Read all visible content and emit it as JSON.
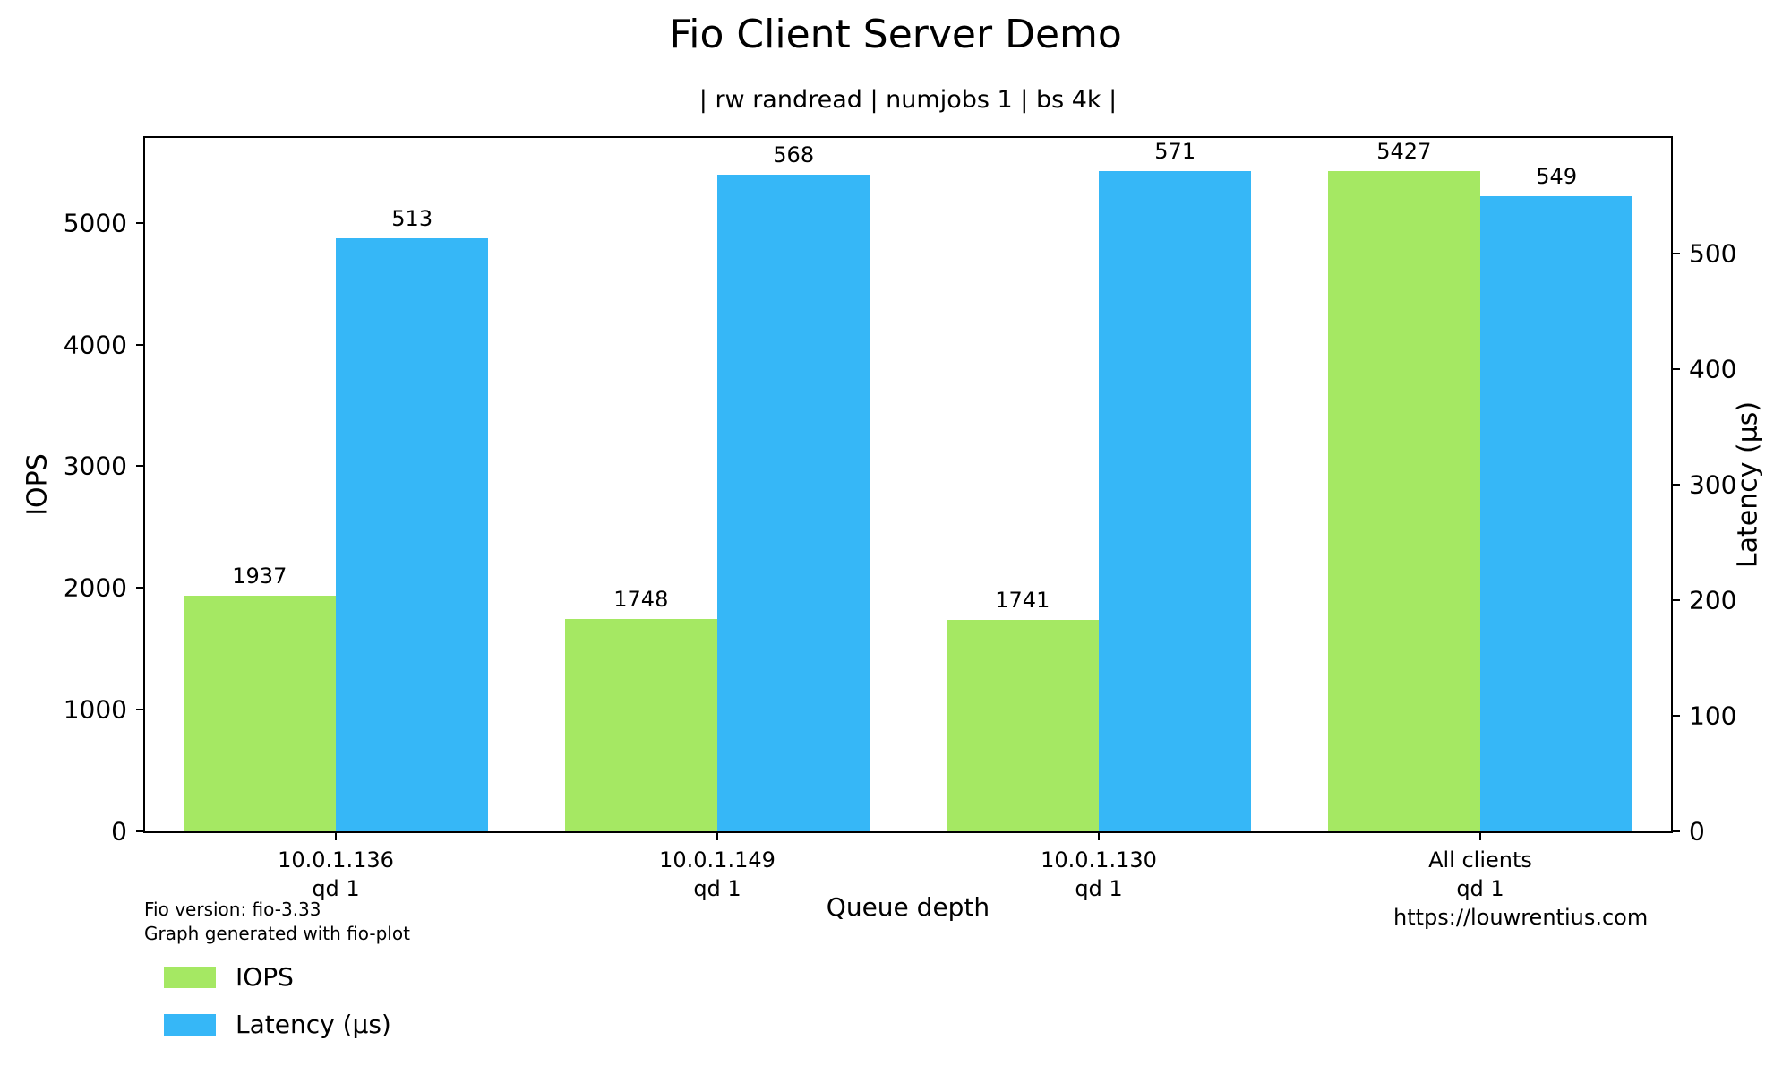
{
  "chart_data": {
    "type": "bar",
    "title": "Fio Client Server Demo",
    "subtitle": "| rw randread | numjobs 1 | bs 4k |",
    "xlabel": "Queue depth",
    "categories": [
      {
        "label": "10.0.1.136",
        "sublabel": "qd 1"
      },
      {
        "label": "10.0.1.149",
        "sublabel": "qd 1"
      },
      {
        "label": "10.0.1.130",
        "sublabel": "qd 1"
      },
      {
        "label": "All clients",
        "sublabel": "qd 1"
      }
    ],
    "series": [
      {
        "name": "IOPS",
        "axis": "left",
        "color": "#a5e863",
        "values": [
          1937,
          1748,
          1741,
          5427
        ]
      },
      {
        "name": "Latency (µs)",
        "axis": "right",
        "color": "#36b7f7",
        "values": [
          513,
          568,
          571,
          549
        ]
      }
    ],
    "left_axis": {
      "label": "IOPS",
      "ticks": [
        0,
        1000,
        2000,
        3000,
        4000,
        5000
      ],
      "max": 5698
    },
    "right_axis": {
      "label": "Latency (µs)",
      "ticks": [
        0,
        100,
        200,
        300,
        400,
        500
      ],
      "max": 599.6
    },
    "legend": {
      "position": "bottom-left",
      "entries": [
        "IOPS",
        "Latency (µs)"
      ]
    },
    "grid": false,
    "bar_value_labels": true
  },
  "footer": {
    "fio_version": "Fio version: fio-3.33",
    "generator": "Graph generated with fio-plot",
    "website": "https://louwrentius.com"
  }
}
